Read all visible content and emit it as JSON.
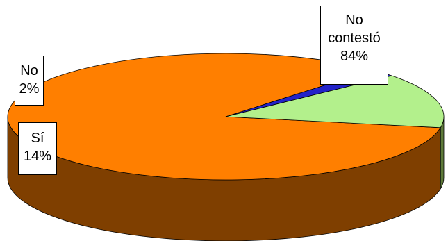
{
  "chart_data": {
    "type": "pie",
    "style": "3d",
    "slices": [
      {
        "label": "No contestó",
        "value": 84,
        "value_label": "84%",
        "color": "#ff7f00",
        "side_color": "#7f3f00"
      },
      {
        "label": "Sí",
        "value": 14,
        "value_label": "14%",
        "color": "#b3f08c",
        "side_color": "#5e7a3a"
      },
      {
        "label": "No",
        "value": 2,
        "value_label": "2%",
        "color": "#2323c8",
        "side_color": "#10106a"
      }
    ],
    "legend": "none"
  }
}
